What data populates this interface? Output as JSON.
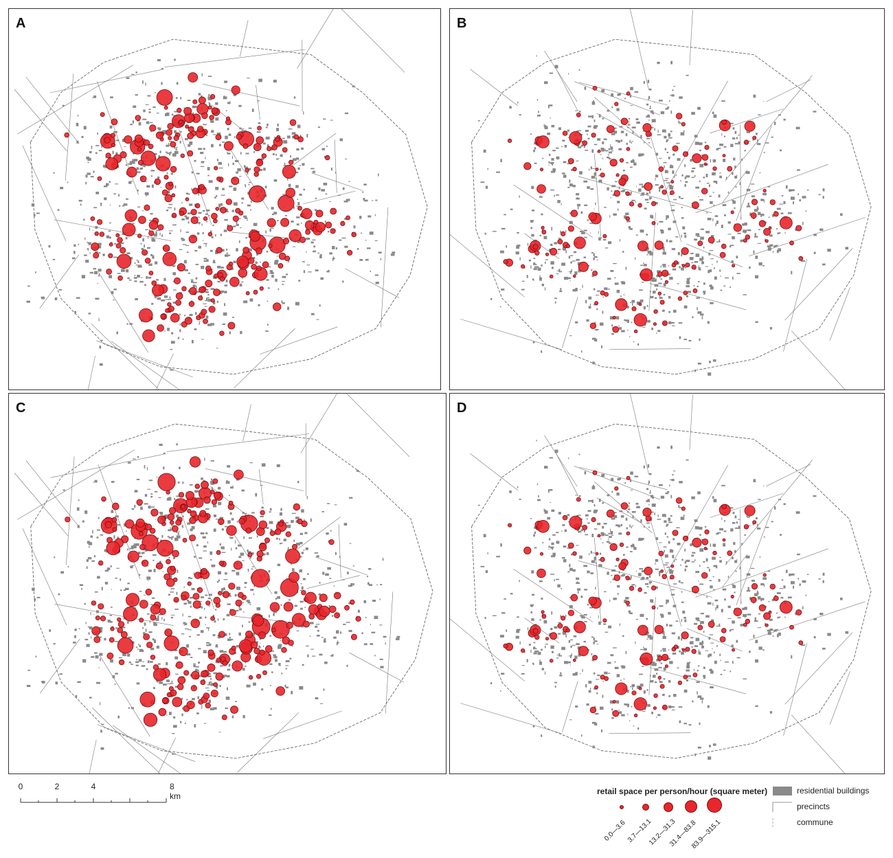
{
  "panels": [
    {
      "letter": "A",
      "intensity": 1.0,
      "sizeScale": 1.0
    },
    {
      "letter": "B",
      "intensity": 0.55,
      "sizeScale": 0.45
    },
    {
      "letter": "C",
      "intensity": 1.0,
      "sizeScale": 1.1
    },
    {
      "letter": "D",
      "intensity": 0.55,
      "sizeScale": 0.45
    }
  ],
  "scalebar": {
    "labels": [
      "0",
      "2",
      "4",
      "8 km"
    ]
  },
  "legend": {
    "title": "retail space per person/hour (square meter)",
    "classes": [
      "0.0—3.6",
      "3.7—13.1",
      "13.2—31.3",
      "31.4—83.8",
      "83.9—315.1"
    ],
    "items": [
      {
        "label": "residential buildings",
        "icon": "gray-filled-rectangle"
      },
      {
        "label": "precincts",
        "icon": "thin-outline-line"
      },
      {
        "label": "commune",
        "icon": "dashed-outline-line"
      }
    ]
  },
  "colors": {
    "circle_fill": "#e8262b",
    "circle_stroke": "#7a0f12",
    "buildings": "#8a8a8a",
    "boundary": "#555555"
  }
}
